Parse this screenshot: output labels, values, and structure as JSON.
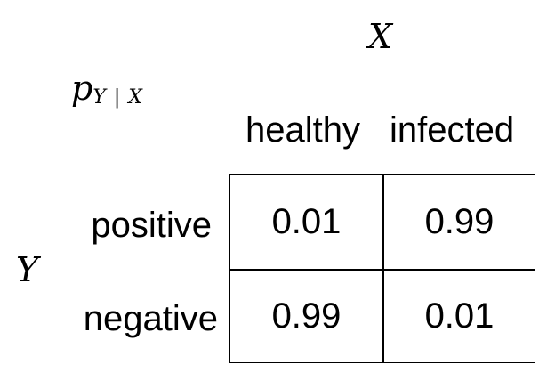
{
  "variables": {
    "x": "X",
    "y": "Y"
  },
  "distribution": {
    "symbol": "p",
    "subscript": "Y | X"
  },
  "columns": [
    "healthy",
    "infected"
  ],
  "rows": [
    "positive",
    "negative"
  ],
  "table": [
    [
      "0.01",
      "0.99"
    ],
    [
      "0.99",
      "0.01"
    ]
  ]
}
